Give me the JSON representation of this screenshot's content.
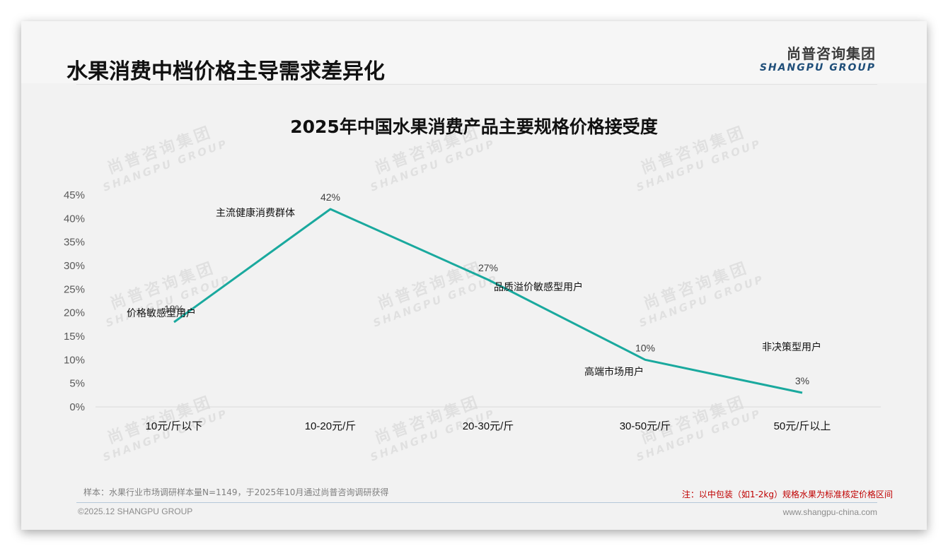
{
  "header": {
    "title": "水果消费中档价格主导需求差异化",
    "logo_cn": "尚普咨询集团",
    "logo_en": "SHANGPU GROUP"
  },
  "watermark": {
    "cn": "尚普咨询集团",
    "en": "SHANGPU GROUP"
  },
  "colors": {
    "line": "#1aa99e",
    "footnote": "#c00000",
    "logo_en": "#1f4e79"
  },
  "chart_data": {
    "type": "line",
    "title": "2025年中国水果消费产品主要规格价格接受度",
    "xlabel": "",
    "ylabel": "",
    "categories": [
      "10元/斤以下",
      "10-20元/斤",
      "20-30元/斤",
      "30-50元/斤",
      "50元/斤以上"
    ],
    "series": [
      {
        "name": "价格接受度",
        "values": [
          18,
          42,
          27,
          10,
          3
        ],
        "color": "#1aa99e"
      }
    ],
    "data_labels": [
      "18%",
      "42%",
      "27%",
      "10%",
      "3%"
    ],
    "annotations": [
      "价格敏感型用户",
      "主流健康消费群体",
      "品质溢价敏感型用户",
      "高端市场用户",
      "非决策型用户"
    ],
    "ylim": [
      0,
      45
    ],
    "yticks": [
      "0%",
      "5%",
      "10%",
      "15%",
      "20%",
      "25%",
      "30%",
      "35%",
      "40%",
      "45%"
    ],
    "grid": false,
    "legend": "none"
  },
  "footer": {
    "source": "样本：水果行业市场调研样本量N=1149，于2025年10月通过尚普咨询调研获得",
    "note": "注：以中包装（如1-2kg）规格水果为标准核定价格区间",
    "copyright": "©2025.12 SHANGPU GROUP",
    "website": "www.shangpu-china.com"
  }
}
